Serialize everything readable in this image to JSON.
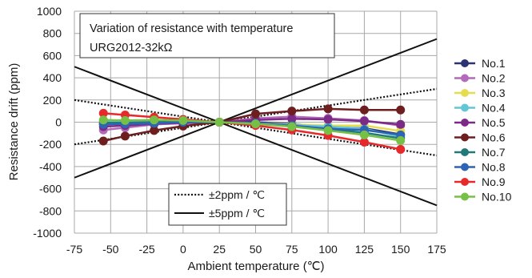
{
  "chart_data": {
    "type": "line",
    "title": "Variation of resistance with temperature",
    "subtitle": "URG2012-32kΩ",
    "xlabel": "Ambient temperature (℃)",
    "ylabel": "Resistance drift (ppm)",
    "xlim": [
      -75,
      175
    ],
    "ylim": [
      -1000,
      1000
    ],
    "x_ticks": [
      -75,
      -50,
      -25,
      0,
      25,
      50,
      75,
      100,
      125,
      150,
      175
    ],
    "y_ticks": [
      1000,
      800,
      600,
      400,
      200,
      0,
      -200,
      -400,
      -600,
      -800,
      -1000
    ],
    "grid": true,
    "legend_position": "right",
    "x": [
      -55,
      -40,
      -20,
      0,
      25,
      50,
      75,
      100,
      125,
      150
    ],
    "series": [
      {
        "name": "No.1",
        "color": "#2b3470",
        "values": [
          -15,
          -10,
          -5,
          0,
          0,
          0,
          -15,
          -45,
          -55,
          -110
        ]
      },
      {
        "name": "No.2",
        "color": "#b36ab8",
        "values": [
          -70,
          -50,
          -20,
          -10,
          0,
          35,
          50,
          35,
          15,
          -30
        ]
      },
      {
        "name": "No.3",
        "color": "#e6dd4e",
        "values": [
          5,
          5,
          5,
          5,
          0,
          -10,
          -20,
          -30,
          -30,
          -80
        ]
      },
      {
        "name": "No.4",
        "color": "#63c6d6",
        "values": [
          10,
          10,
          5,
          5,
          0,
          -10,
          -25,
          -40,
          -60,
          -130
        ]
      },
      {
        "name": "No.5",
        "color": "#7b2b86",
        "values": [
          -40,
          -30,
          -15,
          -5,
          0,
          20,
          30,
          25,
          10,
          -20
        ]
      },
      {
        "name": "No.6",
        "color": "#6e1e1e",
        "values": [
          -170,
          -125,
          -75,
          -35,
          0,
          75,
          100,
          120,
          110,
          110
        ]
      },
      {
        "name": "No.7",
        "color": "#207a78",
        "values": [
          -5,
          -5,
          0,
          5,
          0,
          -15,
          -35,
          -60,
          -95,
          -145
        ]
      },
      {
        "name": "No.8",
        "color": "#2d64b4",
        "values": [
          -20,
          -15,
          -10,
          0,
          0,
          -10,
          -30,
          -60,
          -70,
          -115
        ]
      },
      {
        "name": "No.9",
        "color": "#e8292c",
        "values": [
          80,
          65,
          45,
          25,
          0,
          -30,
          -70,
          -120,
          -180,
          -245
        ]
      },
      {
        "name": "No.10",
        "color": "#76c047",
        "values": [
          20,
          15,
          20,
          15,
          0,
          -15,
          -40,
          -75,
          -115,
          -165
        ]
      }
    ],
    "reference_lines": [
      {
        "label": "±2ppm / ℃",
        "style": "dotted",
        "color": "#111111",
        "segments": [
          [
            [
              -75,
              200
            ],
            [
              175,
              -300
            ]
          ],
          [
            [
              -75,
              -200
            ],
            [
              175,
              300
            ]
          ]
        ]
      },
      {
        "label": "±5ppm / ℃",
        "style": "solid",
        "color": "#111111",
        "segments": [
          [
            [
              -75,
              500
            ],
            [
              175,
              -750
            ]
          ],
          [
            [
              -75,
              -500
            ],
            [
              175,
              750
            ]
          ]
        ]
      }
    ],
    "reference_legend_position": "bottom-center"
  }
}
